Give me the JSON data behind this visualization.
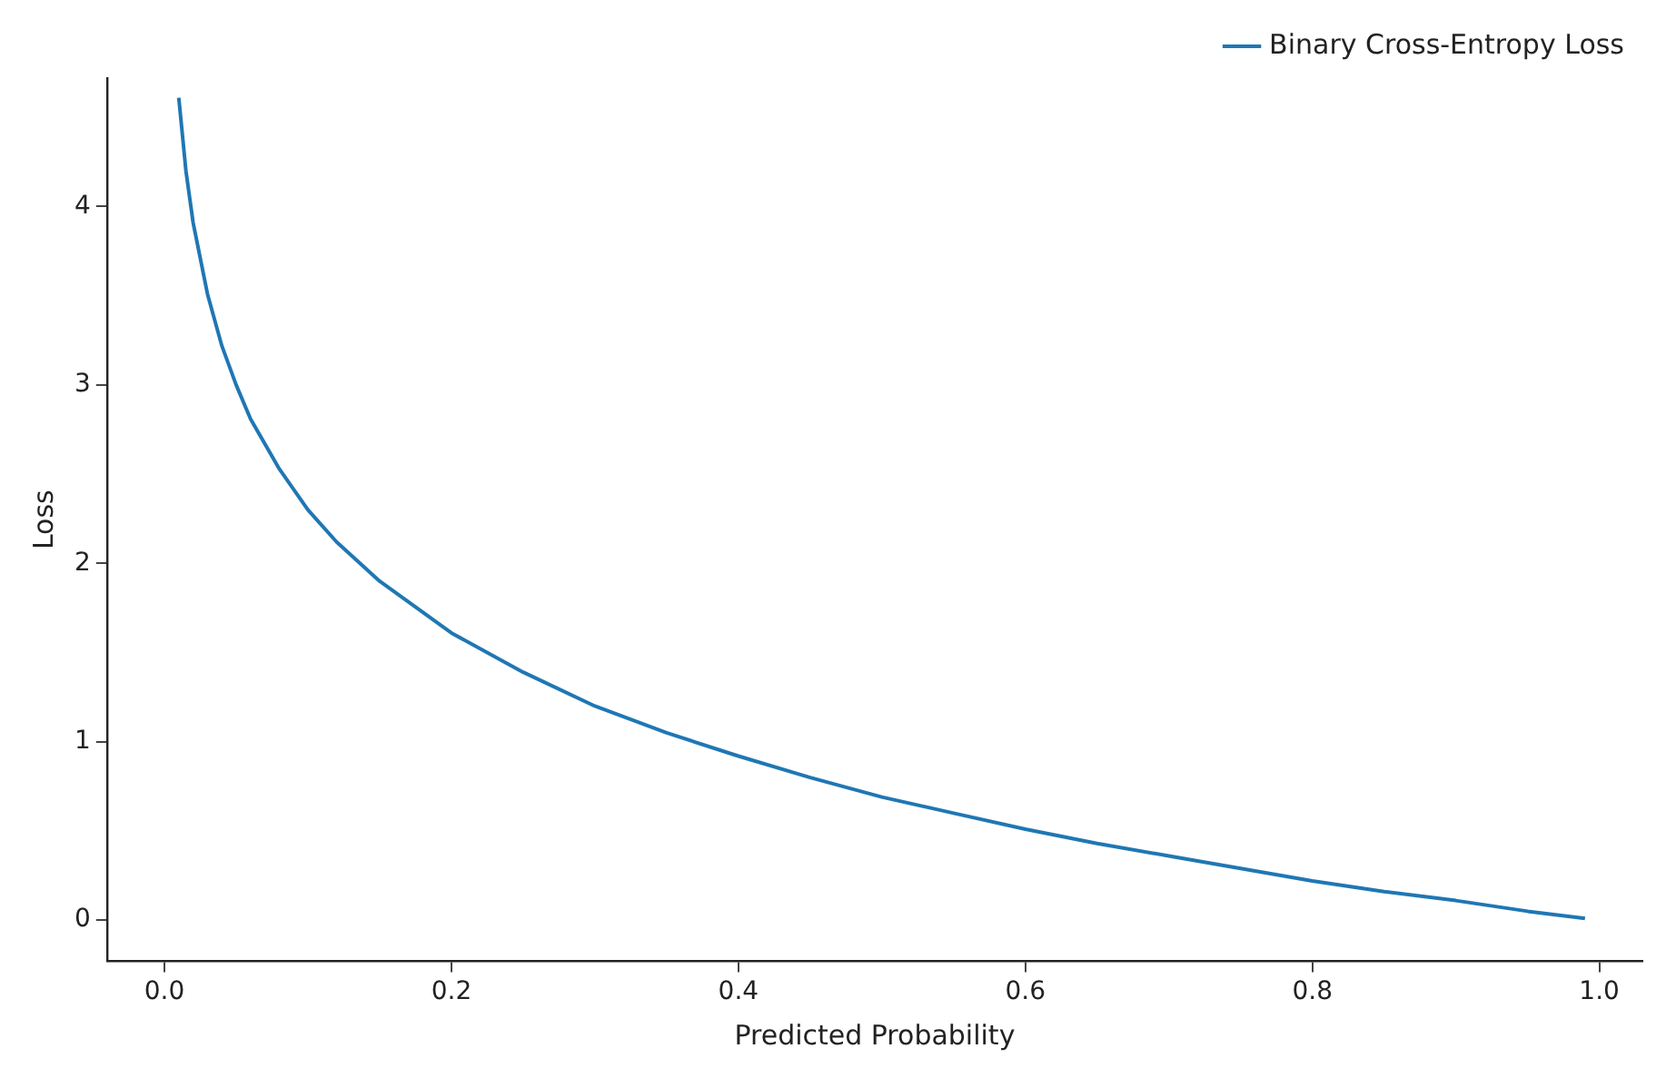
{
  "chart_data": {
    "type": "line",
    "xlabel": "Predicted Probability",
    "ylabel": "Loss",
    "x": [
      0.01,
      0.015,
      0.02,
      0.03,
      0.04,
      0.05,
      0.06,
      0.08,
      0.1,
      0.12,
      0.15,
      0.2,
      0.25,
      0.3,
      0.35,
      0.4,
      0.45,
      0.5,
      0.55,
      0.6,
      0.65,
      0.7,
      0.75,
      0.8,
      0.85,
      0.9,
      0.95,
      0.99
    ],
    "series": [
      {
        "name": "Binary Cross-Entropy Loss",
        "color": "#1f77b4",
        "values": [
          4.61,
          4.2,
          3.91,
          3.51,
          3.22,
          3.0,
          2.81,
          2.53,
          2.3,
          2.12,
          1.9,
          1.61,
          1.39,
          1.2,
          1.05,
          0.92,
          0.8,
          0.69,
          0.6,
          0.51,
          0.43,
          0.36,
          0.29,
          0.22,
          0.16,
          0.11,
          0.05,
          0.01
        ]
      }
    ],
    "xlim": [
      -0.04,
      1.03
    ],
    "xticks": [
      {
        "value": 0,
        "label": "0.0"
      },
      0.2,
      0.4,
      0.6,
      0.8,
      {
        "value": 1,
        "label": "1.0"
      }
    ],
    "ylim": [
      -0.23,
      4.72
    ],
    "yticks": [
      0,
      1,
      2,
      3,
      4
    ],
    "grid": false,
    "legend": "top right",
    "marker": "none",
    "line_style": "solid"
  }
}
